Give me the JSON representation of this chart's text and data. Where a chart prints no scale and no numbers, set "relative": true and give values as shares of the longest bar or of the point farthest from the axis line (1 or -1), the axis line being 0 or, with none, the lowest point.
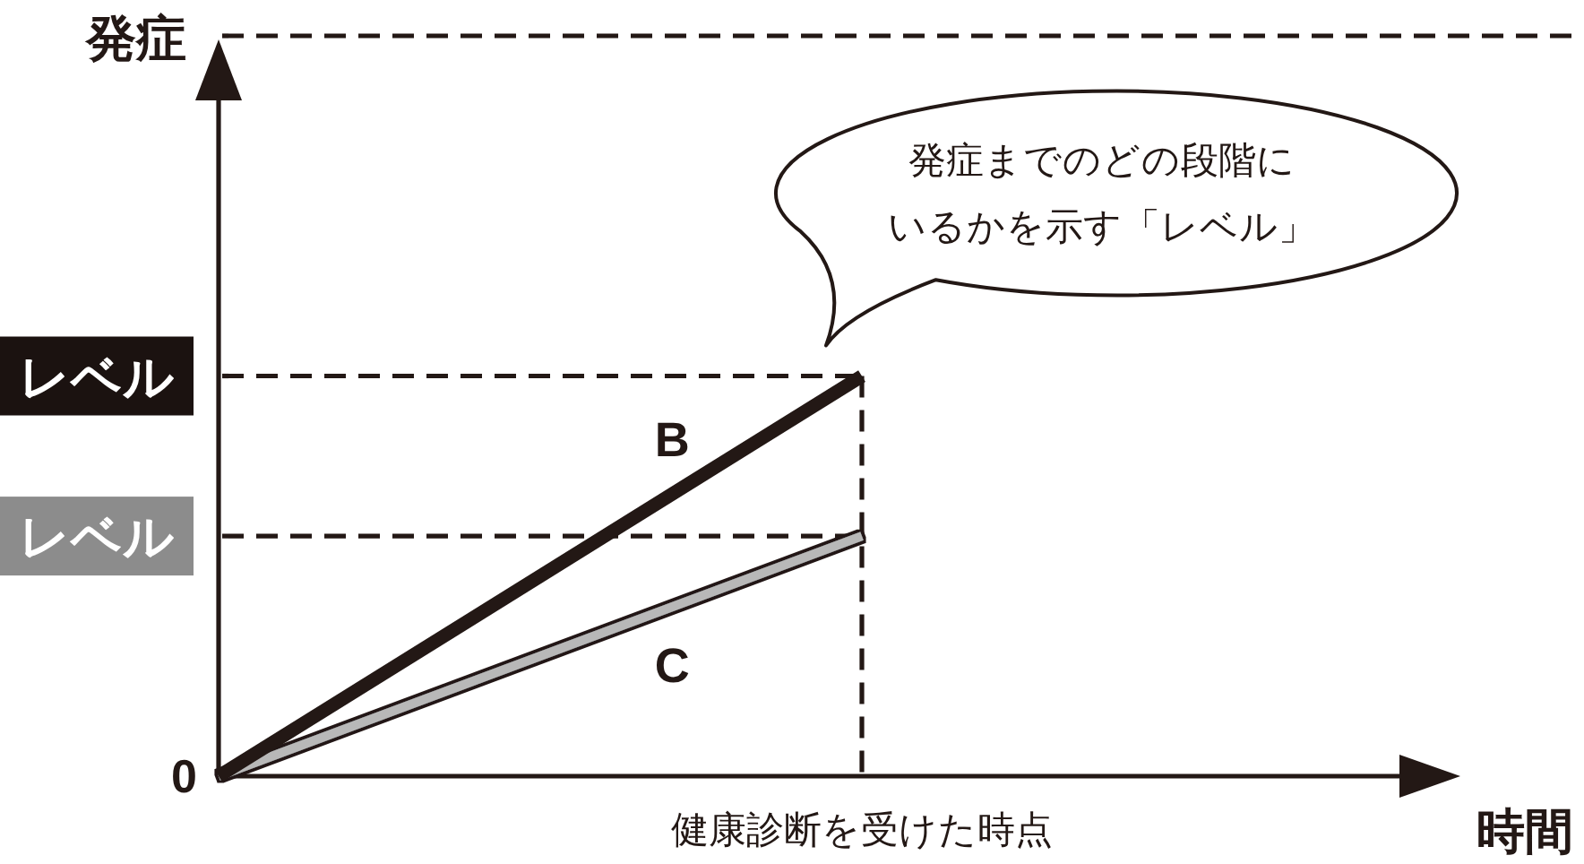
{
  "chart_data": {
    "type": "line",
    "relative": true,
    "xlabel": "時間",
    "categories": [
      null,
      null
    ],
    "line_style": "solid",
    "series": [
      {
        "name": "B",
        "color": "#231815",
        "values": [
          0,
          1
        ]
      },
      {
        "name": "C",
        "color": "#b8b8b8",
        "values": [
          0,
          0.6
        ]
      }
    ],
    "ref_lines": [
      {
        "axis": "y",
        "value": 1.85,
        "label": "発症",
        "color": "#231815",
        "line_style": "dashed"
      },
      {
        "axis": "y",
        "value": 1,
        "label": "レベル",
        "color": "#231815",
        "line_style": "dashed"
      },
      {
        "axis": "y",
        "value": 0.6,
        "label": "レベル",
        "color": "#231815",
        "line_style": "dashed"
      }
    ],
    "annotations": [
      "0",
      "発症までのどの段階にいるかを示す「レベル」",
      "健康診断を受けた時点"
    ]
  }
}
